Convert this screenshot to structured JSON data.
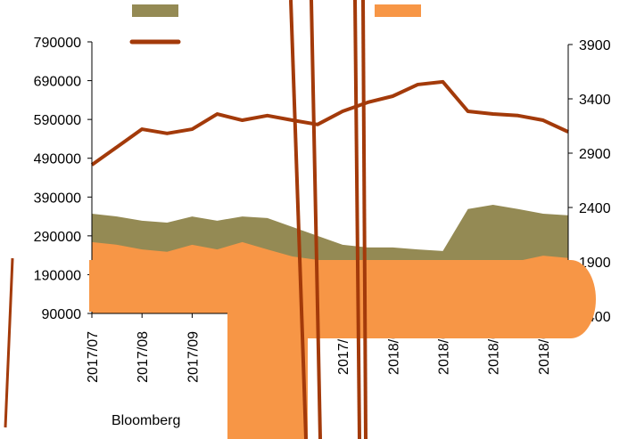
{
  "chart_data": {
    "type": "area-line",
    "source": "Bloomberg",
    "categories": [
      "2017/07",
      null,
      "2017/08",
      null,
      "2017/09",
      null,
      null,
      null,
      null,
      null,
      "2017/1",
      null,
      "2018/0",
      null,
      "2018/0",
      null,
      "2018/0",
      null,
      "2018/0",
      null
    ],
    "series": [
      {
        "kind": "area",
        "color": "#948a54",
        "values": [
          347000,
          340000,
          329000,
          324000,
          340000,
          329000,
          340000,
          336000,
          313000,
          290000,
          267000,
          260000,
          260000,
          255000,
          251000,
          359000,
          370000,
          359000,
          347000,
          343000
        ]
      },
      {
        "kind": "area",
        "color": "#f79646",
        "values": [
          274000,
          267000,
          255000,
          249000,
          267000,
          255000,
          274000,
          255000,
          237000,
          228000,
          221000,
          220000,
          220000,
          220000,
          220000,
          220000,
          222000,
          225000,
          239000,
          233000
        ]
      },
      {
        "kind": "line",
        "color": "#a33a0a",
        "values": [
          473000,
          519000,
          565000,
          554000,
          565000,
          604000,
          588000,
          600000,
          588000,
          577000,
          611000,
          634000,
          650000,
          680000,
          687000,
          611000,
          604000,
          600000,
          588000,
          558000
        ]
      }
    ],
    "ylim": [
      90000,
      790000
    ],
    "yticks": [
      90000,
      190000,
      290000,
      390000,
      490000,
      590000,
      690000,
      790000
    ],
    "y2lim": [
      1400,
      3900
    ],
    "y2ticks": [
      1400,
      1900,
      2400,
      2900,
      3400,
      3900
    ]
  }
}
